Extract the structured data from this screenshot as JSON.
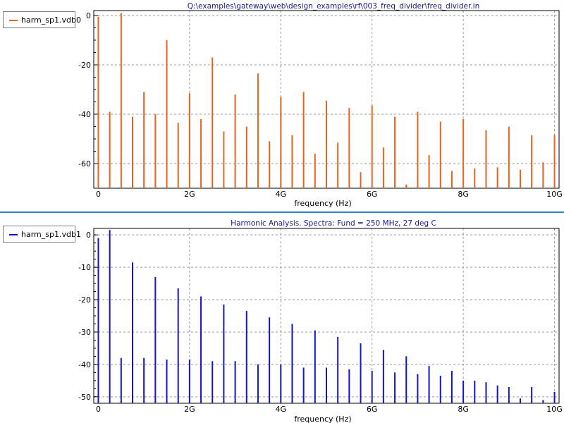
{
  "chart_data": [
    {
      "type": "bar",
      "title": "Q:\\examples\\gateway\\web\\design_examples\\rf\\003_freq_divider\\freq_divider.in",
      "xlabel": "frequency (Hz)",
      "ylabel": "",
      "xlim": [
        -0.1,
        10.1
      ],
      "ylim": [
        -70,
        2
      ],
      "x_ticks": [
        0,
        2,
        4,
        6,
        8,
        10
      ],
      "x_tick_labels": [
        "0",
        "2G",
        "4G",
        "6G",
        "8G",
        "10G"
      ],
      "y_ticks": [
        0,
        -20,
        -40,
        -60
      ],
      "y_tick_labels": [
        "0",
        "-20",
        "-40",
        "-60"
      ],
      "grid": true,
      "legend_position": "top-left",
      "color": "#e8641c",
      "series": [
        {
          "name": "harm_sp1.vdb0",
          "x": [
            0,
            0.25,
            0.5,
            0.75,
            1.0,
            1.25,
            1.5,
            1.75,
            2.0,
            2.25,
            2.5,
            2.75,
            3.0,
            3.25,
            3.5,
            3.75,
            4.0,
            4.25,
            4.5,
            4.75,
            5.0,
            5.25,
            5.5,
            5.75,
            6.0,
            6.25,
            6.5,
            6.75,
            7.0,
            7.25,
            7.5,
            7.75,
            8.0,
            8.25,
            8.5,
            8.75,
            9.0,
            9.25,
            9.5,
            9.75,
            10.0
          ],
          "values": [
            -0.5,
            -39,
            1,
            -41,
            -31,
            -40,
            -10,
            -43.5,
            -31.5,
            -42,
            -17,
            -47,
            -32,
            -45,
            -23.5,
            -51,
            -33,
            -48.5,
            -31,
            -56,
            -34.5,
            -51.5,
            -37.5,
            -63.5,
            -36.5,
            -53.5,
            -41,
            -68.5,
            -39,
            -56.5,
            -43,
            -63,
            -42,
            -62,
            -46.5,
            -61.5,
            -45,
            -62.5,
            -48.5,
            -59.5,
            -48.5
          ]
        }
      ]
    },
    {
      "type": "bar",
      "title": "Harmonic Analysis. Spectra: Fund = 250 MHz, 27 deg C",
      "xlabel": "frequency (Hz)",
      "ylabel": "",
      "xlim": [
        -0.1,
        10.1
      ],
      "ylim": [
        -52,
        2
      ],
      "x_ticks": [
        0,
        2,
        4,
        6,
        8,
        10
      ],
      "x_tick_labels": [
        "0",
        "2G",
        "4G",
        "6G",
        "8G",
        "10G"
      ],
      "y_ticks": [
        0,
        -10,
        -20,
        -30,
        -40,
        -50
      ],
      "y_tick_labels": [
        "0",
        "-10",
        "-20",
        "-30",
        "-40",
        "-50"
      ],
      "grid": true,
      "legend_position": "top-left",
      "color": "#1414c8",
      "series": [
        {
          "name": "harm_sp1.vdb1",
          "x": [
            0,
            0.25,
            0.5,
            0.75,
            1.0,
            1.25,
            1.5,
            1.75,
            2.0,
            2.25,
            2.5,
            2.75,
            3.0,
            3.25,
            3.5,
            3.75,
            4.0,
            4.25,
            4.5,
            4.75,
            5.0,
            5.25,
            5.5,
            5.75,
            6.0,
            6.25,
            6.5,
            6.75,
            7.0,
            7.25,
            7.5,
            7.75,
            8.0,
            8.25,
            8.5,
            8.75,
            9.0,
            9.25,
            9.5,
            9.75,
            10.0
          ],
          "values": [
            -1,
            1.5,
            -38,
            -8.5,
            -38,
            -13,
            -38.5,
            -16.5,
            -38.5,
            -19,
            -39,
            -21.5,
            -39,
            -23.5,
            -40,
            -25.5,
            -40,
            -27.5,
            -41,
            -29.5,
            -41,
            -31.5,
            -41.5,
            -33.5,
            -42,
            -35.5,
            -42.5,
            -37.5,
            -43,
            -40.5,
            -43.5,
            -42,
            -45,
            -45,
            -45.5,
            -46.5,
            -47,
            -50.5,
            -47,
            -51,
            -48.5
          ]
        }
      ]
    }
  ]
}
